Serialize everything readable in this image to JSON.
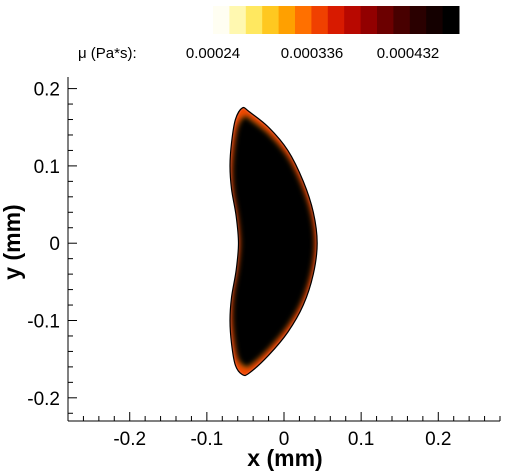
{
  "chart_data": {
    "type": "heatmap",
    "title": "",
    "xlabel": "x (mm)",
    "ylabel": "y (mm)",
    "xlim": [
      -0.28,
      0.28
    ],
    "ylim": [
      -0.23,
      0.215
    ],
    "x_ticks": [
      -0.2,
      -0.1,
      0,
      0.1,
      0.2
    ],
    "x_tick_labels": [
      "-0.2",
      "-0.1",
      "0",
      "0.1",
      "0.2"
    ],
    "y_ticks": [
      -0.2,
      -0.1,
      0,
      0.1,
      0.2
    ],
    "y_tick_labels": [
      "-0.2",
      "-0.1",
      "0",
      "0.1",
      "0.2"
    ],
    "grid": false,
    "colorbar": {
      "title": "μ (Pa*s):",
      "tick_labels": [
        "0.00024",
        "0.000336",
        "0.000432"
      ],
      "tick_values": [
        0.00024,
        0.000336,
        0.000432
      ],
      "range": [
        0.000192,
        0.00048
      ],
      "colors": [
        "#fffef2",
        "#fff8b0",
        "#ffe860",
        "#ffc820",
        "#ffa000",
        "#ff7000",
        "#f04000",
        "#d81a00",
        "#b80800",
        "#920000",
        "#6c0000",
        "#480000",
        "#2a0000",
        "#140000",
        "#000000"
      ]
    },
    "region": {
      "name": "",
      "value_interior": 0.00048,
      "value_boundary": 0.000192,
      "outline_color": "#000000",
      "points": [
        [
          -0.054,
          0.175
        ],
        [
          -0.045,
          0.17
        ],
        [
          -0.02,
          0.15
        ],
        [
          0.005,
          0.12
        ],
        [
          0.025,
          0.08
        ],
        [
          0.038,
          0.04
        ],
        [
          0.043,
          0.0
        ],
        [
          0.038,
          -0.04
        ],
        [
          0.025,
          -0.08
        ],
        [
          0.005,
          -0.115
        ],
        [
          -0.02,
          -0.145
        ],
        [
          -0.045,
          -0.168
        ],
        [
          -0.054,
          -0.17
        ],
        [
          -0.063,
          -0.158
        ],
        [
          -0.068,
          -0.13
        ],
        [
          -0.07,
          -0.1
        ],
        [
          -0.068,
          -0.07
        ],
        [
          -0.062,
          -0.035
        ],
        [
          -0.059,
          0.0
        ],
        [
          -0.062,
          0.035
        ],
        [
          -0.068,
          0.07
        ],
        [
          -0.07,
          0.1
        ],
        [
          -0.068,
          0.13
        ],
        [
          -0.063,
          0.16
        ]
      ]
    }
  }
}
